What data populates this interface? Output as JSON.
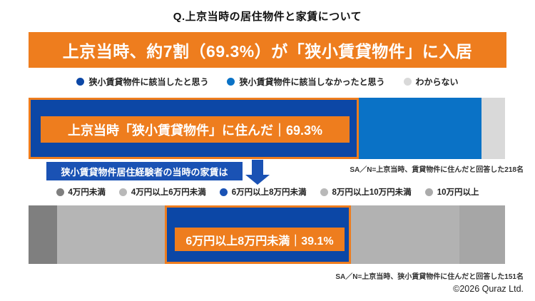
{
  "header": {
    "question": "Q.上京当時の居住物件と家賃について",
    "headline": "上京当時、約7割（69.3%）が「狭小賃貸物件」に入居"
  },
  "subquestion": {
    "label": "狭小賃貸物件居住経験者の当時の家賃は"
  },
  "legends": [
    {
      "items": [
        {
          "label": "狭小賃貸物件に該当したと思う",
          "color": "#0C47A6"
        },
        {
          "label": "狭小賃貸物件に該当しなかったと思う",
          "color": "#0A72C6"
        },
        {
          "label": "わからない",
          "color": "#D9D9D9"
        }
      ]
    },
    {
      "items": [
        {
          "label": "4万円未満",
          "color": "#7F7F7F"
        },
        {
          "label": "4万円以上6万円未満",
          "color": "#B9B9B9"
        },
        {
          "label": "6万円以上8万円未満",
          "color": "#1A52B4"
        },
        {
          "label": "8万円以上10万円未満",
          "color": "#B9B9B9"
        },
        {
          "label": "10万円以上",
          "color": "#ABABAB"
        }
      ]
    }
  ],
  "chart_data": [
    {
      "type": "bar",
      "stacked": true,
      "orientation": "horizontal",
      "unit": "%",
      "segments": [
        {
          "label": "狭小賃貸物件に該当したと思う",
          "value": 69.3,
          "color": "#0C47A6",
          "highlighted": true
        },
        {
          "label": "狭小賃貸物件に該当しなかったと思う",
          "value": 25.7,
          "color": "#0A72C6",
          "highlighted": false
        },
        {
          "label": "わからない",
          "value": 5.0,
          "color": "#D9D9D9",
          "highlighted": false
        }
      ],
      "callout": "上京当時「狭小賃貸物件」に住んだ｜69.3%",
      "note": "SA／N=上京当時、賃貸物件に住んだと回答した218名"
    },
    {
      "type": "bar",
      "stacked": true,
      "orientation": "horizontal",
      "unit": "%",
      "segments": [
        {
          "label": "4万円未満",
          "value": 6.0,
          "color": "#7F7F7F",
          "highlighted": false
        },
        {
          "label": "4万円以上6万円未満",
          "value": 22.6,
          "color": "#B5B5B5",
          "highlighted": false
        },
        {
          "label": "6万円以上8万円未満",
          "value": 39.1,
          "color": "#0C47A6",
          "highlighted": true
        },
        {
          "label": "8万円以上10万円未満",
          "value": 22.7,
          "color": "#B2B2B2",
          "highlighted": false
        },
        {
          "label": "10万円以上",
          "value": 9.6,
          "color": "#A6A6A6",
          "highlighted": false
        }
      ],
      "callout": "6万円以上8万円未満｜39.1%",
      "note": "SA／N=上京当時、狭小賃貸物件に住んだと回答した151名"
    }
  ],
  "footer": {
    "copyright": "©2026 Quraz Ltd."
  },
  "colors": {
    "accent_orange": "#EE7D1E",
    "accent_blue_dark": "#0C47A6",
    "accent_blue": "#0A72C6",
    "callout_blue": "#1A52B4"
  }
}
